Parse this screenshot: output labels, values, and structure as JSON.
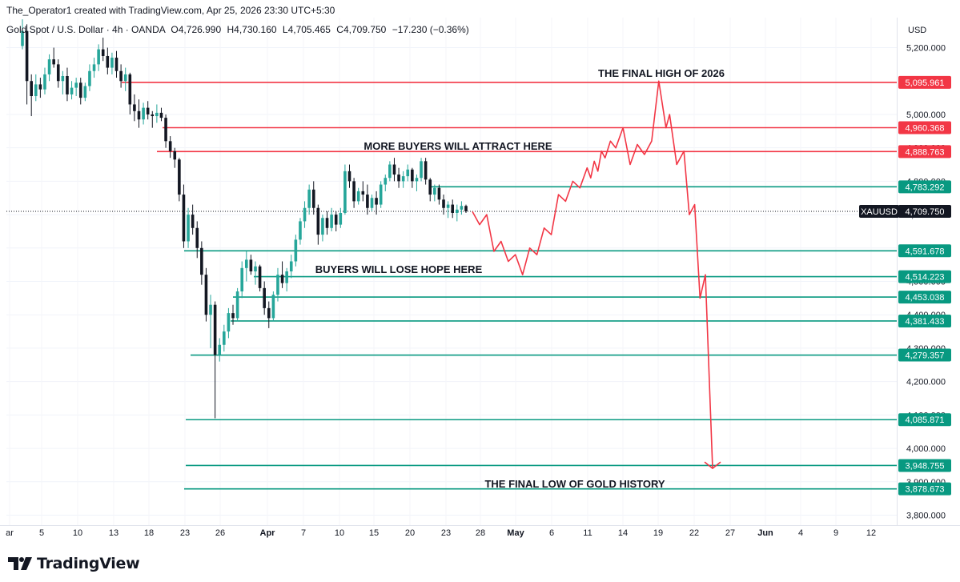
{
  "header": {
    "attribution": "The_Operator1 created with TradingView.com, Apr 25, 2026 23:30 UTC+5:30"
  },
  "footer": {
    "brand": "TradingView"
  },
  "colors": {
    "up": "#26a69a",
    "down": "#131722",
    "line_green": "#089981",
    "line_red": "#f23645",
    "label_text": "#ffffff",
    "axis_text": "#131722"
  },
  "chart_data": {
    "type": "candlestick",
    "symbol_line": "Gold Spot / U.S. Dollar · 4h · OANDA",
    "ohlc_line": {
      "o": "O4,726.990",
      "h": "H4,730.160",
      "l": "L4,705.465",
      "c": "C4,709.750",
      "chg": "−17.230 (−0.36%)"
    },
    "currency": "USD",
    "ylim": [
      3770,
      5290
    ],
    "y_ticks": [
      "5,200.000",
      "5,000.000",
      "4,900.000",
      "4,800.000",
      "4,700.000",
      "4,600.000",
      "4,500.000",
      "4,400.000",
      "4,300.000",
      "4,200.000",
      "4,100.000",
      "4,000.000",
      "3,900.000",
      "3,800.000"
    ],
    "x_ticks": [
      "ar",
      "5",
      "10",
      "13",
      "18",
      "23",
      "26",
      "Apr",
      "7",
      "10",
      "15",
      "20",
      "23",
      "28",
      "May",
      "6",
      "11",
      "14",
      "19",
      "22",
      "27",
      "Jun",
      "4",
      "9",
      "12"
    ],
    "last_price": {
      "symbol": "XAUUSD",
      "value": "4,709.750",
      "y": 4709.75
    },
    "levels": [
      {
        "value": "5,095.961",
        "y": 5095.961,
        "color": "red"
      },
      {
        "value": "4,960.368",
        "y": 4960.368,
        "color": "red"
      },
      {
        "value": "4,888.763",
        "y": 4888.763,
        "color": "red"
      },
      {
        "value": "4,783.292",
        "y": 4783.292,
        "color": "green"
      },
      {
        "value": "4,591.678",
        "y": 4591.678,
        "color": "green"
      },
      {
        "value": "4,514.223",
        "y": 4514.223,
        "color": "green"
      },
      {
        "value": "4,453.038",
        "y": 4453.038,
        "color": "green"
      },
      {
        "value": "4,381.433",
        "y": 4381.433,
        "color": "green"
      },
      {
        "value": "4,279.357",
        "y": 4279.357,
        "color": "green"
      },
      {
        "value": "4,085.871",
        "y": 4085.871,
        "color": "green"
      },
      {
        "value": "3,948.755",
        "y": 3948.755,
        "color": "green"
      },
      {
        "value": "3,878.673",
        "y": 3878.673,
        "color": "green"
      }
    ],
    "annotations": [
      {
        "text": "THE FINAL HIGH OF 2026"
      },
      {
        "text": "MORE BUYERS WILL ATTRACT HERE"
      },
      {
        "text": "BUYERS WILL LOSE HOPE HERE"
      },
      {
        "text": "THE FINAL LOW OF GOLD HISTORY"
      }
    ],
    "candles": [
      [
        5205,
        5285,
        5195,
        5250
      ],
      [
        5250,
        5270,
        5030,
        5100
      ],
      [
        5100,
        5120,
        4995,
        5055
      ],
      [
        5055,
        5120,
        5040,
        5090
      ],
      [
        5090,
        5110,
        5050,
        5075
      ],
      [
        5075,
        5140,
        5060,
        5120
      ],
      [
        5120,
        5180,
        5100,
        5165
      ],
      [
        5165,
        5200,
        5140,
        5150
      ],
      [
        5150,
        5165,
        5080,
        5100
      ],
      [
        5100,
        5130,
        5060,
        5115
      ],
      [
        5115,
        5140,
        5040,
        5060
      ],
      [
        5060,
        5100,
        5045,
        5080
      ],
      [
        5080,
        5110,
        5055,
        5095
      ],
      [
        5095,
        5110,
        5030,
        5050
      ],
      [
        5050,
        5095,
        5040,
        5085
      ],
      [
        5085,
        5150,
        5070,
        5130
      ],
      [
        5130,
        5170,
        5110,
        5150
      ],
      [
        5150,
        5210,
        5130,
        5195
      ],
      [
        5195,
        5230,
        5160,
        5175
      ],
      [
        5175,
        5200,
        5120,
        5140
      ],
      [
        5140,
        5185,
        5120,
        5170
      ],
      [
        5170,
        5190,
        5110,
        5130
      ],
      [
        5130,
        5150,
        5080,
        5100
      ],
      [
        5100,
        5140,
        5070,
        5120
      ],
      [
        5120,
        5125,
        5000,
        5030
      ],
      [
        5030,
        5060,
        4980,
        5010
      ],
      [
        5010,
        5045,
        4960,
        4985
      ],
      [
        4985,
        5035,
        4970,
        5020
      ],
      [
        5020,
        5040,
        4985,
        5000
      ],
      [
        5000,
        5010,
        4960,
        4995
      ],
      [
        4995,
        5030,
        4975,
        5005
      ],
      [
        5005,
        5020,
        4980,
        4990
      ],
      [
        4990,
        5000,
        4900,
        4920
      ],
      [
        4920,
        4935,
        4870,
        4890
      ],
      [
        4890,
        4900,
        4840,
        4865
      ],
      [
        4865,
        4870,
        4740,
        4760
      ],
      [
        4760,
        4790,
        4600,
        4620
      ],
      [
        4620,
        4720,
        4600,
        4700
      ],
      [
        4700,
        4730,
        4640,
        4660
      ],
      [
        4660,
        4680,
        4570,
        4600
      ],
      [
        4600,
        4620,
        4490,
        4520
      ],
      [
        4520,
        4540,
        4380,
        4400
      ],
      [
        4400,
        4460,
        4300,
        4430
      ],
      [
        4430,
        4440,
        4090,
        4280
      ],
      [
        4280,
        4330,
        4260,
        4310
      ],
      [
        4310,
        4370,
        4290,
        4350
      ],
      [
        4350,
        4420,
        4330,
        4405
      ],
      [
        4405,
        4430,
        4370,
        4390
      ],
      [
        4390,
        4480,
        4380,
        4470
      ],
      [
        4470,
        4560,
        4450,
        4540
      ],
      [
        4540,
        4590,
        4500,
        4565
      ],
      [
        4565,
        4580,
        4520,
        4530
      ],
      [
        4530,
        4560,
        4490,
        4545
      ],
      [
        4545,
        4550,
        4470,
        4480
      ],
      [
        4480,
        4500,
        4400,
        4420
      ],
      [
        4420,
        4440,
        4360,
        4390
      ],
      [
        4390,
        4470,
        4380,
        4460
      ],
      [
        4460,
        4540,
        4440,
        4520
      ],
      [
        4520,
        4560,
        4480,
        4495
      ],
      [
        4495,
        4540,
        4470,
        4530
      ],
      [
        4530,
        4580,
        4510,
        4560
      ],
      [
        4560,
        4640,
        4545,
        4625
      ],
      [
        4625,
        4690,
        4610,
        4680
      ],
      [
        4680,
        4740,
        4660,
        4720
      ],
      [
        4720,
        4790,
        4700,
        4775
      ],
      [
        4775,
        4800,
        4700,
        4720
      ],
      [
        4720,
        4730,
        4610,
        4640
      ],
      [
        4640,
        4700,
        4620,
        4690
      ],
      [
        4690,
        4710,
        4640,
        4660
      ],
      [
        4660,
        4720,
        4650,
        4700
      ],
      [
        4700,
        4710,
        4650,
        4670
      ],
      [
        4670,
        4720,
        4660,
        4705
      ],
      [
        4705,
        4850,
        4700,
        4830
      ],
      [
        4830,
        4850,
        4780,
        4800
      ],
      [
        4800,
        4810,
        4720,
        4740
      ],
      [
        4740,
        4780,
        4730,
        4770
      ],
      [
        4770,
        4800,
        4740,
        4760
      ],
      [
        4760,
        4790,
        4700,
        4720
      ],
      [
        4720,
        4760,
        4710,
        4750
      ],
      [
        4750,
        4770,
        4700,
        4730
      ],
      [
        4730,
        4800,
        4720,
        4790
      ],
      [
        4790,
        4820,
        4770,
        4810
      ],
      [
        4810,
        4860,
        4800,
        4850
      ],
      [
        4850,
        4870,
        4800,
        4820
      ],
      [
        4820,
        4840,
        4780,
        4800
      ],
      [
        4800,
        4830,
        4780,
        4815
      ],
      [
        4815,
        4850,
        4800,
        4835
      ],
      [
        4835,
        4840,
        4780,
        4800
      ],
      [
        4800,
        4820,
        4770,
        4810
      ],
      [
        4810,
        4870,
        4800,
        4860
      ],
      [
        4860,
        4870,
        4790,
        4805
      ],
      [
        4805,
        4810,
        4740,
        4760
      ],
      [
        4760,
        4790,
        4740,
        4780
      ],
      [
        4780,
        4790,
        4730,
        4745
      ],
      [
        4745,
        4760,
        4700,
        4720
      ],
      [
        4720,
        4740,
        4690,
        4730
      ],
      [
        4730,
        4745,
        4690,
        4705
      ],
      [
        4705,
        4730,
        4680,
        4715
      ],
      [
        4715,
        4740,
        4700,
        4726
      ],
      [
        4726,
        4730,
        4705,
        4710
      ]
    ],
    "projection": [
      [
        0,
        4709
      ],
      [
        4,
        4670
      ],
      [
        8,
        4700
      ],
      [
        12,
        4590
      ],
      [
        16,
        4620
      ],
      [
        20,
        4560
      ],
      [
        24,
        4580
      ],
      [
        28,
        4520
      ],
      [
        32,
        4600
      ],
      [
        36,
        4580
      ],
      [
        40,
        4660
      ],
      [
        44,
        4640
      ],
      [
        48,
        4760
      ],
      [
        52,
        4740
      ],
      [
        56,
        4800
      ],
      [
        60,
        4780
      ],
      [
        64,
        4840
      ],
      [
        66,
        4810
      ],
      [
        68,
        4860
      ],
      [
        70,
        4830
      ],
      [
        72,
        4890
      ],
      [
        74,
        4870
      ],
      [
        77,
        4920
      ],
      [
        80,
        4900
      ],
      [
        84,
        4960
      ],
      [
        88,
        4850
      ],
      [
        92,
        4910
      ],
      [
        96,
        4880
      ],
      [
        100,
        4920
      ],
      [
        104,
        5100
      ],
      [
        108,
        4960
      ],
      [
        110,
        5000
      ],
      [
        114,
        4850
      ],
      [
        118,
        4890
      ],
      [
        121,
        4700
      ],
      [
        124,
        4730
      ],
      [
        127,
        4450
      ],
      [
        130,
        4520
      ],
      [
        134,
        3940
      ]
    ]
  }
}
